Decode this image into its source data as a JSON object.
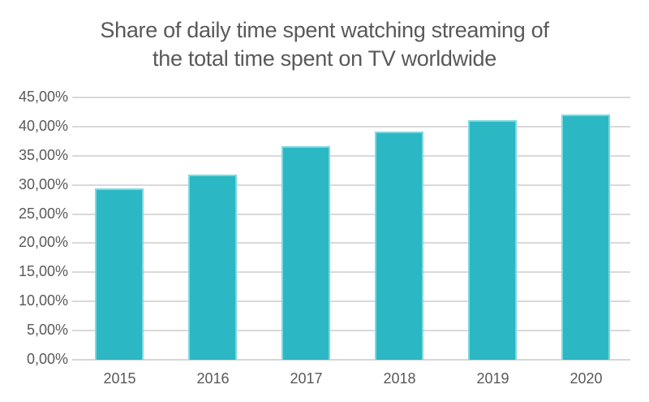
{
  "title": {
    "line1": "Share of daily time spent watching streaming of",
    "line2": "the total time spent on TV worldwide"
  },
  "colors": {
    "bar_fill": "#2bb7c3",
    "bar_edge": "#7ed8df",
    "gridline": "#d9d9d9",
    "text": "#595959",
    "background": "#ffffff"
  },
  "chart_data": {
    "type": "bar",
    "title": "Share of daily time spent watching streaming of the total time spent on TV worldwide",
    "categories": [
      "2015",
      "2016",
      "2017",
      "2018",
      "2019",
      "2020"
    ],
    "values": [
      29.4,
      31.8,
      36.6,
      39.1,
      41.1,
      42.1
    ],
    "unit": "%",
    "xlabel": "",
    "ylabel": "",
    "ylim": [
      0,
      45
    ],
    "ytick_step": 5,
    "ytick_labels_top_to_bottom": [
      "45,00%",
      "40,00%",
      "35,00%",
      "30,00%",
      "25,00%",
      "20,00%",
      "15,00%",
      "10,00%",
      "5,00%",
      "0,00%"
    ],
    "decimal_separator": ",",
    "grid": true,
    "legend": "none"
  }
}
